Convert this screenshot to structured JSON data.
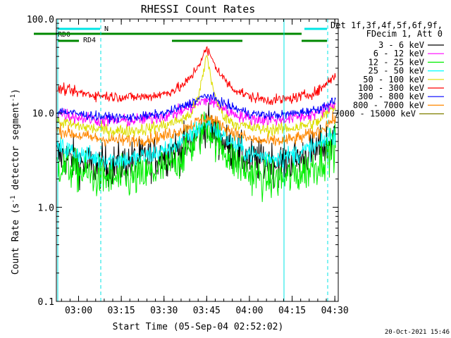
{
  "chart_data": {
    "type": "line",
    "title": "RHESSI Count Rates",
    "xlabel": "Start Time (05-Sep-04 02:52:02)",
    "ylabel_prefix": "Count Rate (s",
    "ylabel_sup": "-1",
    "ylabel_mid": " detector segment",
    "ylabel_sup2": "-1",
    "ylabel_suffix": ")",
    "yscale": "log",
    "ylim": [
      0.1,
      100
    ],
    "xlim": [
      2.87,
      4.52
    ],
    "x_ticks": [
      {
        "value": 3.0,
        "label": "03:00"
      },
      {
        "value": 3.25,
        "label": "03:15"
      },
      {
        "value": 3.5,
        "label": "03:30"
      },
      {
        "value": 3.75,
        "label": "03:45"
      },
      {
        "value": 4.0,
        "label": "04:00"
      },
      {
        "value": 4.25,
        "label": "04:15"
      },
      {
        "value": 4.5,
        "label": "04:30"
      }
    ],
    "y_ticks": [
      {
        "value": 0.1,
        "label": "0.1"
      },
      {
        "value": 1.0,
        "label": "1.0"
      },
      {
        "value": 10.0,
        "label": "10.0"
      },
      {
        "value": 100.0,
        "label": "100.0"
      }
    ],
    "legend": {
      "position": "right-outside",
      "header1": "Det 1f,3f,4f,5f,6f,9f,",
      "header2": "FDecim 1, Att 0"
    },
    "series": [
      {
        "name": "3 - 6 keV",
        "color": "#000000",
        "x": [
          2.9,
          3.0,
          3.1,
          3.2,
          3.3,
          3.4,
          3.5,
          3.6,
          3.7,
          3.75,
          3.8,
          3.9,
          4.0,
          4.1,
          4.2,
          4.3,
          4.4,
          4.5
        ],
        "values": [
          3.5,
          3.0,
          2.7,
          2.8,
          3.0,
          3.3,
          3.6,
          4.2,
          6.0,
          8.0,
          6.0,
          4.0,
          3.2,
          3.0,
          3.0,
          3.4,
          4.0,
          5.5
        ]
      },
      {
        "name": "6 - 12 keV",
        "color": "#ff00ff",
        "x": [
          2.9,
          3.0,
          3.1,
          3.2,
          3.3,
          3.4,
          3.5,
          3.6,
          3.7,
          3.75,
          3.8,
          3.9,
          4.0,
          4.1,
          4.2,
          4.3,
          4.4,
          4.5
        ],
        "values": [
          10.0,
          9.0,
          8.5,
          8.3,
          8.3,
          8.7,
          9.3,
          10.5,
          12.5,
          14.0,
          12.5,
          10.0,
          8.8,
          8.5,
          8.7,
          9.2,
          10.0,
          12.5
        ]
      },
      {
        "name": "12 - 25 keV",
        "color": "#00ee00",
        "x": [
          2.9,
          3.0,
          3.1,
          3.2,
          3.3,
          3.4,
          3.5,
          3.6,
          3.7,
          3.75,
          3.8,
          3.9,
          4.0,
          4.1,
          4.2,
          4.3,
          4.4,
          4.5
        ],
        "values": [
          2.8,
          2.4,
          2.1,
          2.0,
          2.0,
          2.2,
          2.6,
          3.4,
          5.5,
          7.5,
          5.5,
          3.2,
          2.3,
          2.0,
          2.0,
          2.3,
          2.9,
          4.5
        ]
      },
      {
        "name": "25 - 50 keV",
        "color": "#00ffff",
        "x": [
          2.9,
          3.0,
          3.1,
          3.2,
          3.3,
          3.4,
          3.5,
          3.6,
          3.7,
          3.75,
          3.8,
          3.9,
          4.0,
          4.1,
          4.2,
          4.3,
          4.4,
          4.5
        ],
        "values": [
          4.3,
          3.7,
          3.3,
          3.2,
          3.2,
          3.5,
          4.0,
          5.0,
          6.8,
          8.2,
          6.8,
          4.8,
          3.7,
          3.4,
          3.4,
          3.8,
          4.5,
          6.0
        ]
      },
      {
        "name": "50 - 100 keV",
        "color": "#dddd00",
        "x": [
          2.9,
          3.0,
          3.1,
          3.2,
          3.3,
          3.4,
          3.5,
          3.6,
          3.65,
          3.7,
          3.75,
          3.8,
          3.85,
          3.9,
          4.0,
          4.1,
          4.2,
          4.3,
          4.4,
          4.5
        ],
        "values": [
          8.0,
          7.3,
          6.8,
          6.5,
          6.5,
          6.8,
          7.4,
          8.5,
          9.5,
          14.0,
          42.0,
          14.0,
          9.5,
          8.0,
          7.0,
          6.7,
          6.8,
          7.2,
          8.0,
          12.0
        ]
      },
      {
        "name": "100 - 300 keV",
        "color": "#ff0000",
        "x": [
          2.9,
          3.0,
          3.1,
          3.2,
          3.3,
          3.4,
          3.5,
          3.6,
          3.65,
          3.7,
          3.75,
          3.8,
          3.85,
          3.9,
          4.0,
          4.1,
          4.2,
          4.3,
          4.4,
          4.5
        ],
        "values": [
          18.0,
          16.5,
          15.5,
          15.0,
          14.8,
          15.0,
          16.0,
          19.0,
          23.0,
          32.0,
          48.0,
          32.0,
          23.0,
          18.5,
          15.0,
          13.8,
          13.8,
          15.0,
          17.0,
          25.0
        ]
      },
      {
        "name": "300 - 800 keV",
        "color": "#0000ff",
        "x": [
          2.9,
          3.0,
          3.1,
          3.2,
          3.3,
          3.4,
          3.5,
          3.6,
          3.7,
          3.75,
          3.8,
          3.9,
          4.0,
          4.1,
          4.2,
          4.3,
          4.4,
          4.5
        ],
        "values": [
          10.5,
          9.8,
          9.3,
          9.0,
          9.0,
          9.3,
          9.9,
          11.5,
          14.0,
          15.5,
          14.0,
          11.5,
          10.0,
          9.5,
          9.6,
          10.2,
          11.0,
          13.5
        ]
      },
      {
        "name": "800 - 7000 keV",
        "color": "#ff8800",
        "x": [
          2.9,
          3.0,
          3.1,
          3.2,
          3.3,
          3.4,
          3.5,
          3.6,
          3.7,
          3.75,
          3.8,
          3.9,
          4.0,
          4.1,
          4.2,
          4.3,
          4.4,
          4.5
        ],
        "values": [
          6.5,
          5.8,
          5.4,
          5.2,
          5.1,
          5.3,
          5.7,
          6.6,
          8.2,
          9.0,
          8.2,
          6.3,
          5.3,
          5.0,
          5.1,
          5.5,
          6.3,
          8.8
        ]
      },
      {
        "name": "7000 - 15000 keV",
        "color": "#808000",
        "x": [],
        "values": []
      }
    ],
    "flag_bars": {
      "cyan_label": "N",
      "rd0_label": "RD0",
      "rd4_label": "RD4"
    },
    "footer_timestamp": "20-Oct-2021 15:46"
  }
}
